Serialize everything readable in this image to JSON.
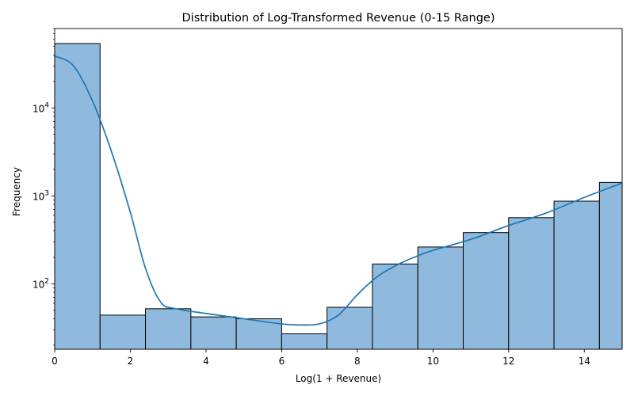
{
  "chart_data": {
    "type": "bar",
    "title": "Distribution of Log-Transformed Revenue (0-15 Range)",
    "xlabel": "Log(1 + Revenue)",
    "ylabel": "Frequency",
    "xlim": [
      0,
      15
    ],
    "ylim": [
      18,
      80000
    ],
    "yscale": "log",
    "bins": [
      {
        "x0": 0.0,
        "x1": 1.2,
        "count": 54000
      },
      {
        "x0": 1.2,
        "x1": 2.4,
        "count": 44
      },
      {
        "x0": 2.4,
        "x1": 3.6,
        "count": 52
      },
      {
        "x0": 3.6,
        "x1": 4.8,
        "count": 42
      },
      {
        "x0": 4.8,
        "x1": 6.0,
        "count": 40
      },
      {
        "x0": 6.0,
        "x1": 7.2,
        "count": 27
      },
      {
        "x0": 7.2,
        "x1": 8.4,
        "count": 54
      },
      {
        "x0": 8.4,
        "x1": 9.6,
        "count": 168
      },
      {
        "x0": 9.6,
        "x1": 10.8,
        "count": 262
      },
      {
        "x0": 10.8,
        "x1": 12.0,
        "count": 382
      },
      {
        "x0": 12.0,
        "x1": 13.2,
        "count": 565
      },
      {
        "x0": 13.2,
        "x1": 14.4,
        "count": 870
      },
      {
        "x0": 14.4,
        "x1": 15.0,
        "count": 1420
      }
    ],
    "kde": {
      "x": [
        0,
        0.5,
        1.0,
        1.5,
        2.0,
        2.4,
        2.8,
        3.2,
        4.0,
        5.0,
        6.0,
        6.5,
        7.0,
        7.5,
        8.0,
        8.5,
        9.0,
        9.5,
        10.0,
        11.0,
        12.0,
        13.0,
        14.0,
        15.0
      ],
      "y": [
        39000,
        30000,
        12000,
        3200,
        650,
        150,
        62,
        52,
        46,
        40,
        35,
        34,
        35,
        44,
        75,
        118,
        160,
        200,
        240,
        320,
        460,
        640,
        960,
        1400
      ]
    },
    "xticks": [
      0,
      2,
      4,
      6,
      8,
      10,
      12,
      14
    ],
    "xtick_labels": [
      "0",
      "2",
      "4",
      "6",
      "8",
      "10",
      "12",
      "14"
    ],
    "yticks": [
      100,
      1000,
      10000
    ],
    "ytick_labels": [
      "10",
      "10",
      "10"
    ],
    "ytick_exponents": [
      "2",
      "3",
      "4"
    ],
    "colors": {
      "bar_fill": "#8fbadd",
      "bar_edge": "#000000",
      "kde_line": "#1f77b4"
    }
  }
}
